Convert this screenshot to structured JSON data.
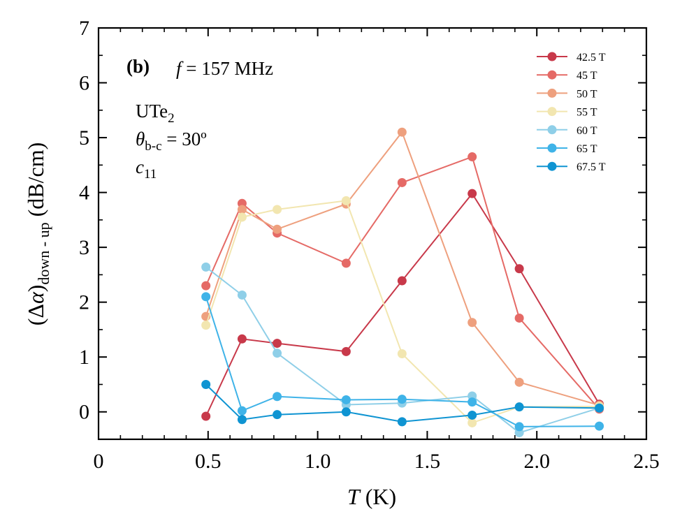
{
  "chart_data": {
    "type": "line",
    "panel_label": "(b)",
    "xlabel": {
      "var": "T",
      "unit": "(K)"
    },
    "ylabel": {
      "lead": "(Δ",
      "var": "α",
      "close": ")",
      "sub": "down - up",
      "unit": "(dB/cm)"
    },
    "annotations": {
      "freq_var": "f",
      "freq_text": " = 157 MHz",
      "material_base": "UTe",
      "material_sub": "2",
      "angle_var": "θ",
      "angle_sub": "b-c",
      "angle_text": " = 30º",
      "mode_var": "c",
      "mode_sub": "11"
    },
    "xlim": [
      0,
      2.5
    ],
    "ylim": [
      -0.5,
      7
    ],
    "xticks": [
      0,
      0.5,
      1.0,
      1.5,
      2.0,
      2.5
    ],
    "xtick_labels": [
      "0",
      "0.5",
      "1.0",
      "1.5",
      "2.0",
      "2.5"
    ],
    "yticks": [
      0,
      1,
      2,
      3,
      4,
      5,
      6,
      7
    ],
    "ytick_labels": [
      "0",
      "1",
      "2",
      "3",
      "4",
      "5",
      "6",
      "7"
    ],
    "legend_position": "top-right",
    "x": [
      0.49,
      0.655,
      0.815,
      1.13,
      1.385,
      1.705,
      1.92,
      2.285
    ],
    "series": [
      {
        "name": "42.5 T",
        "color": "#c8394a",
        "values": [
          -0.08,
          1.33,
          1.25,
          1.1,
          2.39,
          3.98,
          2.61,
          0.14
        ]
      },
      {
        "name": "45 T",
        "color": "#e56a66",
        "values": [
          2.3,
          3.8,
          3.26,
          2.71,
          4.18,
          4.65,
          1.71,
          0.05
        ]
      },
      {
        "name": "50 T",
        "color": "#eea07e",
        "values": [
          1.74,
          3.69,
          3.33,
          3.79,
          5.1,
          1.63,
          0.54,
          0.12
        ]
      },
      {
        "name": "55 T",
        "color": "#f2e6b0",
        "values": [
          1.58,
          3.55,
          3.69,
          3.85,
          1.06,
          -0.2,
          0.09,
          0.1
        ]
      },
      {
        "name": "60 T",
        "color": "#8fcfe8",
        "values": [
          2.64,
          2.13,
          1.07,
          0.13,
          0.16,
          0.29,
          -0.38,
          0.07
        ]
      },
      {
        "name": "65 T",
        "color": "#3fb3e8",
        "values": [
          2.1,
          0.02,
          0.28,
          0.22,
          0.23,
          0.18,
          -0.27,
          -0.26
        ]
      },
      {
        "name": "67.5 T",
        "color": "#0f94d2",
        "values": [
          0.5,
          -0.14,
          -0.05,
          0.0,
          -0.18,
          -0.06,
          0.09,
          0.07
        ]
      }
    ]
  }
}
